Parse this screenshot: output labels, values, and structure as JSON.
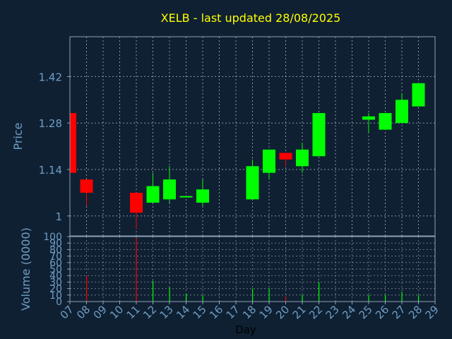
{
  "colors": {
    "background": "#0f2033",
    "title": "#ffff00",
    "axis_text": "#6f9ec4",
    "frame": "#8ea2b4",
    "grid": "#a8b4c0",
    "up": "#00ff00",
    "down": "#ff0000",
    "xlabel": "#000000"
  },
  "chart_data": [
    {
      "type": "candlestick",
      "title": "XELB - last updated 28/08/2025",
      "ylabel": "Price",
      "ylim": [
        0.94,
        1.54
      ],
      "yticks": [
        1,
        1.14,
        1.28,
        1.42
      ],
      "ytick_labels": [
        "1",
        "1.14",
        "1.28",
        "1.42"
      ],
      "grid": true,
      "categories": [
        "07",
        "08",
        "09",
        "10",
        "11",
        "12",
        "13",
        "14",
        "15",
        "16",
        "17",
        "18",
        "19",
        "20",
        "21",
        "22",
        "23",
        "24",
        "25",
        "26",
        "27",
        "28",
        "29"
      ],
      "candles": [
        {
          "day": "07",
          "open": 1.31,
          "high": 1.31,
          "low": 1.13,
          "close": 1.13
        },
        {
          "day": "08",
          "open": 1.11,
          "high": 1.11,
          "low": 1.03,
          "close": 1.07
        },
        {
          "day": "11",
          "open": 1.07,
          "high": 1.07,
          "low": 0.96,
          "close": 1.01
        },
        {
          "day": "12",
          "open": 1.04,
          "high": 1.13,
          "low": 1.04,
          "close": 1.09
        },
        {
          "day": "13",
          "open": 1.05,
          "high": 1.15,
          "low": 1.04,
          "close": 1.11
        },
        {
          "day": "14",
          "open": 1.06,
          "high": 1.06,
          "low": 1.06,
          "close": 1.06
        },
        {
          "day": "15",
          "open": 1.04,
          "high": 1.11,
          "low": 1.03,
          "close": 1.08
        },
        {
          "day": "18",
          "open": 1.05,
          "high": 1.17,
          "low": 1.05,
          "close": 1.15
        },
        {
          "day": "19",
          "open": 1.13,
          "high": 1.2,
          "low": 1.11,
          "close": 1.2
        },
        {
          "day": "20",
          "open": 1.19,
          "high": 1.19,
          "low": 1.15,
          "close": 1.17
        },
        {
          "day": "21",
          "open": 1.15,
          "high": 1.22,
          "low": 1.13,
          "close": 1.2
        },
        {
          "day": "22",
          "open": 1.18,
          "high": 1.31,
          "low": 1.18,
          "close": 1.31
        },
        {
          "day": "25",
          "open": 1.29,
          "high": 1.31,
          "low": 1.25,
          "close": 1.3
        },
        {
          "day": "26",
          "open": 1.26,
          "high": 1.31,
          "low": 1.26,
          "close": 1.31
        },
        {
          "day": "27",
          "open": 1.28,
          "high": 1.37,
          "low": 1.28,
          "close": 1.35
        },
        {
          "day": "28",
          "open": 1.33,
          "high": 1.4,
          "low": 1.33,
          "close": 1.4
        }
      ]
    },
    {
      "type": "bar",
      "ylabel": "Volume (0000)",
      "xlabel": "Day",
      "ylim": [
        0,
        100
      ],
      "yticks": [
        0,
        10,
        20,
        30,
        40,
        50,
        60,
        70,
        80,
        90,
        100
      ],
      "ytick_labels": [
        "0",
        "10",
        "20",
        "30",
        "40",
        "50",
        "60",
        "70",
        "80",
        "90",
        "100"
      ],
      "grid": true,
      "categories": [
        "07",
        "08",
        "09",
        "10",
        "11",
        "12",
        "13",
        "14",
        "15",
        "16",
        "17",
        "18",
        "19",
        "20",
        "21",
        "22",
        "23",
        "24",
        "25",
        "26",
        "27",
        "28",
        "29"
      ],
      "bars": [
        {
          "day": "07",
          "value": 0,
          "direction": "down"
        },
        {
          "day": "08",
          "value": 40,
          "direction": "down"
        },
        {
          "day": "11",
          "value": 98,
          "direction": "down"
        },
        {
          "day": "12",
          "value": 32,
          "direction": "up"
        },
        {
          "day": "13",
          "value": 22,
          "direction": "up"
        },
        {
          "day": "14",
          "value": 12,
          "direction": "up"
        },
        {
          "day": "15",
          "value": 10,
          "direction": "up"
        },
        {
          "day": "18",
          "value": 20,
          "direction": "up"
        },
        {
          "day": "19",
          "value": 20,
          "direction": "up"
        },
        {
          "day": "20",
          "value": 8,
          "direction": "down"
        },
        {
          "day": "21",
          "value": 10,
          "direction": "up"
        },
        {
          "day": "22",
          "value": 30,
          "direction": "up"
        },
        {
          "day": "25",
          "value": 10,
          "direction": "up"
        },
        {
          "day": "26",
          "value": 10,
          "direction": "up"
        },
        {
          "day": "27",
          "value": 15,
          "direction": "up"
        },
        {
          "day": "28",
          "value": 10,
          "direction": "up"
        }
      ]
    }
  ]
}
